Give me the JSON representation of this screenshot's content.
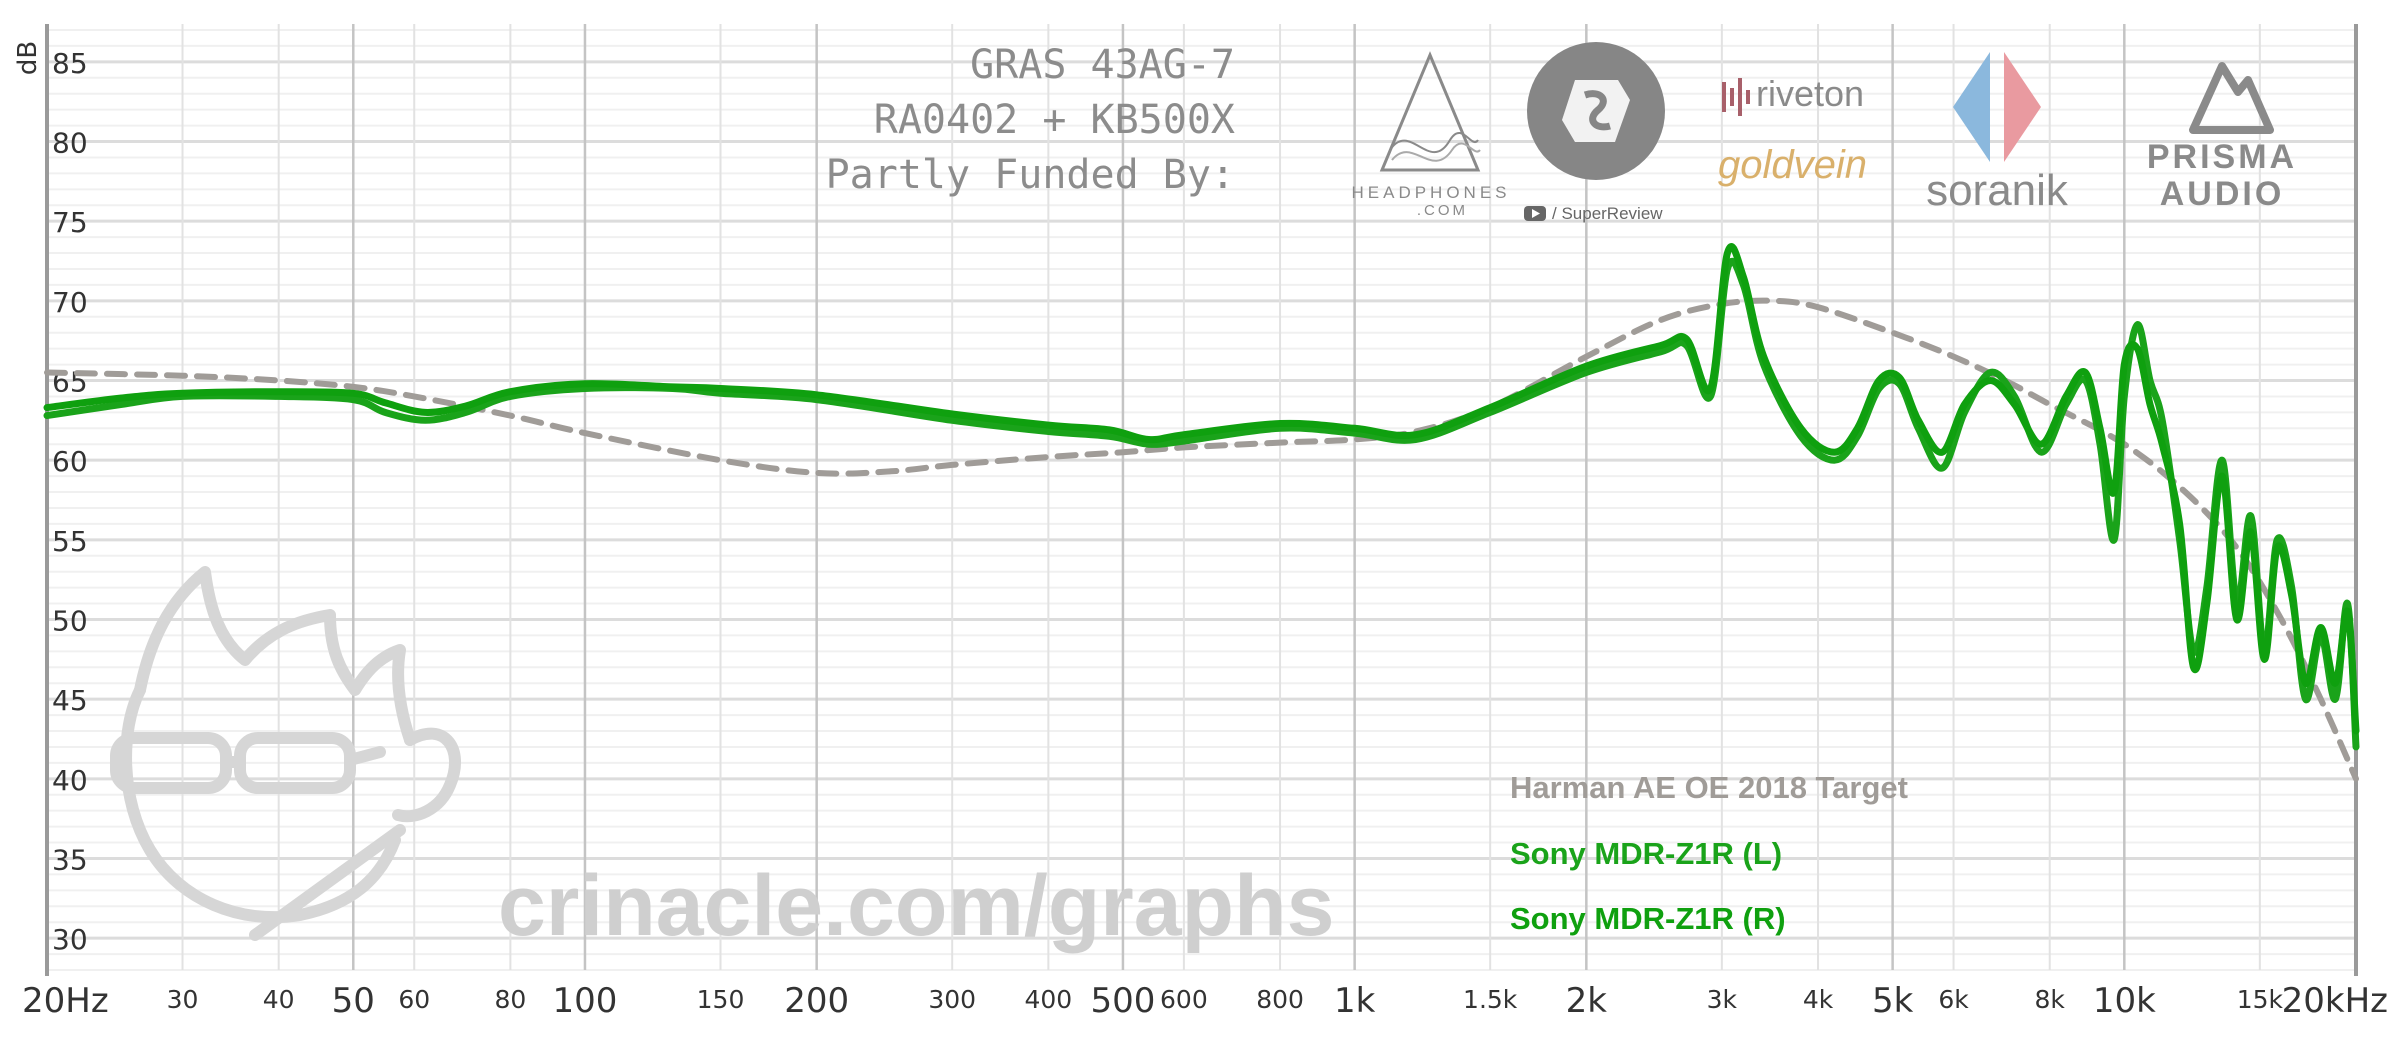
{
  "chart_data": {
    "type": "line",
    "ylabel": "dB",
    "ylim": [
      28,
      87
    ],
    "xlim": [
      20,
      20000
    ],
    "x_scale": "log",
    "y_ticks": [
      30,
      35,
      40,
      45,
      50,
      55,
      60,
      65,
      70,
      75,
      80,
      85
    ],
    "x_ticks": [
      {
        "v": 20,
        "label": "20Hz",
        "major": true
      },
      {
        "v": 30,
        "label": "30",
        "major": false
      },
      {
        "v": 40,
        "label": "40",
        "major": false
      },
      {
        "v": 50,
        "label": "50",
        "major": true
      },
      {
        "v": 60,
        "label": "60",
        "major": false
      },
      {
        "v": 80,
        "label": "80",
        "major": false
      },
      {
        "v": 100,
        "label": "100",
        "major": true
      },
      {
        "v": 150,
        "label": "150",
        "major": false
      },
      {
        "v": 200,
        "label": "200",
        "major": true
      },
      {
        "v": 300,
        "label": "300",
        "major": false
      },
      {
        "v": 400,
        "label": "400",
        "major": false
      },
      {
        "v": 500,
        "label": "500",
        "major": true
      },
      {
        "v": 600,
        "label": "600",
        "major": false
      },
      {
        "v": 800,
        "label": "800",
        "major": false
      },
      {
        "v": 1000,
        "label": "1k",
        "major": true
      },
      {
        "v": 1500,
        "label": "1.5k",
        "major": false
      },
      {
        "v": 2000,
        "label": "2k",
        "major": true
      },
      {
        "v": 3000,
        "label": "3k",
        "major": false
      },
      {
        "v": 4000,
        "label": "4k",
        "major": false
      },
      {
        "v": 5000,
        "label": "5k",
        "major": true
      },
      {
        "v": 6000,
        "label": "6k",
        "major": false
      },
      {
        "v": 8000,
        "label": "8k",
        "major": false
      },
      {
        "v": 10000,
        "label": "10k",
        "major": true
      },
      {
        "v": 15000,
        "label": "15k",
        "major": false
      },
      {
        "v": 20000,
        "label": "20kHz",
        "major": true
      }
    ],
    "series": [
      {
        "name": "Harman AE OE 2018 Target",
        "color": "#a09c98",
        "dashed": true,
        "x": [
          20,
          30,
          40,
          50,
          60,
          80,
          100,
          150,
          200,
          250,
          300,
          400,
          500,
          600,
          800,
          1000,
          1200,
          1500,
          2000,
          2500,
          3000,
          3500,
          4000,
          5000,
          6000,
          7000,
          8000,
          10000,
          12000,
          14000,
          16000,
          18000,
          20000
        ],
        "y": [
          65.5,
          65.3,
          65.0,
          64.6,
          64.0,
          62.8,
          61.7,
          60.0,
          59.2,
          59.3,
          59.7,
          60.2,
          60.5,
          60.8,
          61.1,
          61.3,
          61.8,
          63.3,
          66.5,
          68.8,
          69.8,
          70.0,
          69.6,
          68.0,
          66.5,
          65.0,
          63.5,
          61.0,
          58.0,
          54.5,
          50.0,
          45.0,
          40.0
        ]
      },
      {
        "name": "Sony MDR-Z1R (L)",
        "color": "#1aa31a",
        "dashed": false,
        "x": [
          20,
          25,
          30,
          40,
          50,
          55,
          62,
          70,
          80,
          100,
          130,
          150,
          200,
          300,
          400,
          480,
          540,
          600,
          800,
          1000,
          1200,
          1500,
          2000,
          2500,
          2700,
          2900,
          3050,
          3200,
          3400,
          3800,
          4200,
          4500,
          4800,
          5100,
          5400,
          5800,
          6200,
          6700,
          7200,
          7800,
          8400,
          8900,
          9300,
          9700,
          10000,
          10400,
          10800,
          11200,
          11800,
          12300,
          12800,
          13400,
          14000,
          14600,
          15200,
          15800,
          16500,
          17200,
          18000,
          18800,
          19500,
          20000
        ],
        "y": [
          62.8,
          63.5,
          64.0,
          64.0,
          63.8,
          63.0,
          62.5,
          63.0,
          64.0,
          64.5,
          64.5,
          64.2,
          63.8,
          62.5,
          61.8,
          61.5,
          61.0,
          61.2,
          62.0,
          61.7,
          61.3,
          63.0,
          65.5,
          66.8,
          67.2,
          64.0,
          72.0,
          71.0,
          66.0,
          61.5,
          60.0,
          61.5,
          64.5,
          64.8,
          62.0,
          59.5,
          63.0,
          65.5,
          64.0,
          60.5,
          63.5,
          65.0,
          61.0,
          55.0,
          64.0,
          68.5,
          65.0,
          62.5,
          55.0,
          48.0,
          52.0,
          60.0,
          51.0,
          56.5,
          48.0,
          55.0,
          52.0,
          45.0,
          49.0,
          45.0,
          51.0,
          42.0
        ]
      },
      {
        "name": "Sony MDR-Z1R (R)",
        "color": "#0fa00f",
        "dashed": false,
        "x": [
          20,
          25,
          30,
          40,
          50,
          55,
          62,
          70,
          80,
          100,
          130,
          150,
          200,
          300,
          400,
          480,
          540,
          600,
          800,
          1000,
          1200,
          1500,
          2000,
          2500,
          2700,
          2900,
          3050,
          3200,
          3400,
          3800,
          4200,
          4500,
          4800,
          5100,
          5400,
          5800,
          6200,
          6700,
          7200,
          7800,
          8400,
          8900,
          9300,
          9700,
          10000,
          10400,
          10800,
          11200,
          11800,
          12300,
          12800,
          13400,
          14000,
          14600,
          15200,
          15800,
          16500,
          17200,
          18000,
          18800,
          19500,
          20000
        ],
        "y": [
          63.3,
          63.9,
          64.2,
          64.3,
          64.2,
          63.6,
          63.0,
          63.4,
          64.3,
          64.8,
          64.6,
          64.5,
          64.1,
          62.9,
          62.2,
          61.9,
          61.3,
          61.6,
          62.3,
          62.0,
          61.6,
          63.3,
          65.9,
          67.2,
          67.6,
          64.5,
          73.0,
          71.5,
          66.5,
          62.0,
          60.5,
          62.0,
          65.0,
          65.2,
          62.5,
          60.5,
          63.5,
          65.0,
          63.5,
          61.0,
          64.0,
          65.5,
          62.0,
          58.0,
          66.0,
          67.0,
          63.5,
          61.0,
          56.0,
          47.0,
          51.0,
          59.0,
          50.0,
          55.5,
          47.5,
          54.5,
          51.5,
          46.0,
          49.5,
          46.0,
          50.5,
          43.0
        ]
      }
    ]
  },
  "chart": {
    "ylabel": "dB",
    "rig_lines": [
      "GRAS 43AG-7",
      "RA0402 + KB500X",
      "Partly Funded By:"
    ],
    "watermark": "crinacle.com/graphs",
    "sponsors": {
      "headphones_com": "HEADPHONES\n.COM",
      "superreview": "/ SuperReview",
      "riveton": "riveton",
      "goldvein": "goldvein",
      "soranik": "soranik",
      "prisma": "PRISMA AUDIO"
    }
  },
  "colors": {
    "grid_major": "#c4c4c4",
    "grid_minor": "#e6e6e6",
    "target": "#a09c98",
    "green": "#1aa31a"
  }
}
